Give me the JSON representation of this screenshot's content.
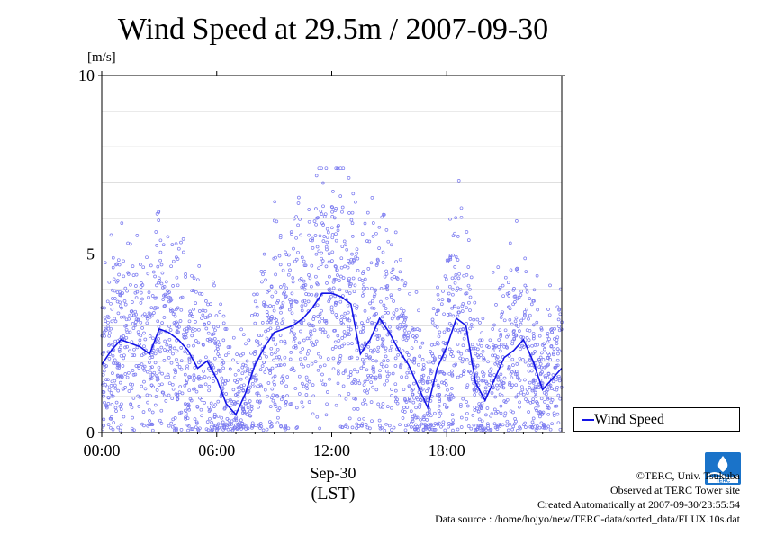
{
  "chart_data": {
    "type": "line",
    "title": "Wind Speed at 29.5m / 2007-09-30",
    "ylabel": "[m/s]",
    "ylim": [
      0,
      10
    ],
    "yticks": [
      "0",
      "5",
      "10"
    ],
    "xlim_hours": [
      0,
      24
    ],
    "xticks": [
      "00:00",
      "06:00",
      "12:00",
      "18:00"
    ],
    "xtick_hours": [
      0,
      6,
      12,
      18
    ],
    "xdate": "Sep-30",
    "xtimezone": "(LST)",
    "grid": true,
    "legend_position": "right",
    "series": [
      {
        "name": "Wind Speed",
        "color": "#1414e6",
        "scatter_color": "#7a7af0",
        "x_hours": [
          0,
          0.5,
          1,
          1.5,
          2,
          2.5,
          3,
          3.5,
          4,
          4.5,
          5,
          5.5,
          6,
          6.5,
          7,
          7.5,
          8,
          8.5,
          9,
          9.5,
          10,
          10.5,
          11,
          11.5,
          12,
          12.5,
          13,
          13.5,
          14,
          14.5,
          15,
          15.5,
          16,
          16.5,
          17,
          17.5,
          18,
          18.5,
          19,
          19.5,
          20,
          20.5,
          21,
          21.5,
          22,
          22.5,
          23,
          23.5,
          24
        ],
        "values": [
          1.9,
          2.3,
          2.6,
          2.5,
          2.4,
          2.2,
          2.9,
          2.8,
          2.6,
          2.3,
          1.8,
          2.0,
          1.5,
          0.8,
          0.5,
          1.1,
          1.9,
          2.4,
          2.8,
          2.9,
          3.0,
          3.2,
          3.5,
          3.9,
          3.9,
          3.8,
          3.6,
          2.2,
          2.6,
          3.2,
          2.8,
          2.3,
          1.9,
          1.3,
          0.7,
          1.8,
          2.4,
          3.2,
          3.0,
          1.4,
          0.9,
          1.5,
          2.1,
          2.3,
          2.6,
          2.0,
          1.2,
          1.5,
          1.8
        ]
      }
    ]
  },
  "credits": {
    "copyright": "©TERC, Univ. Tsukuba",
    "observed": "Observed at TERC Tower site",
    "created": "Created Automatically at 2007-09-30/23:55:54",
    "source": "Data source : /home/hojyo/new/TERC-data/sorted_data/FLUX.10s.dat"
  },
  "logo": {
    "text": "TERC",
    "color": "#1a73c9"
  }
}
